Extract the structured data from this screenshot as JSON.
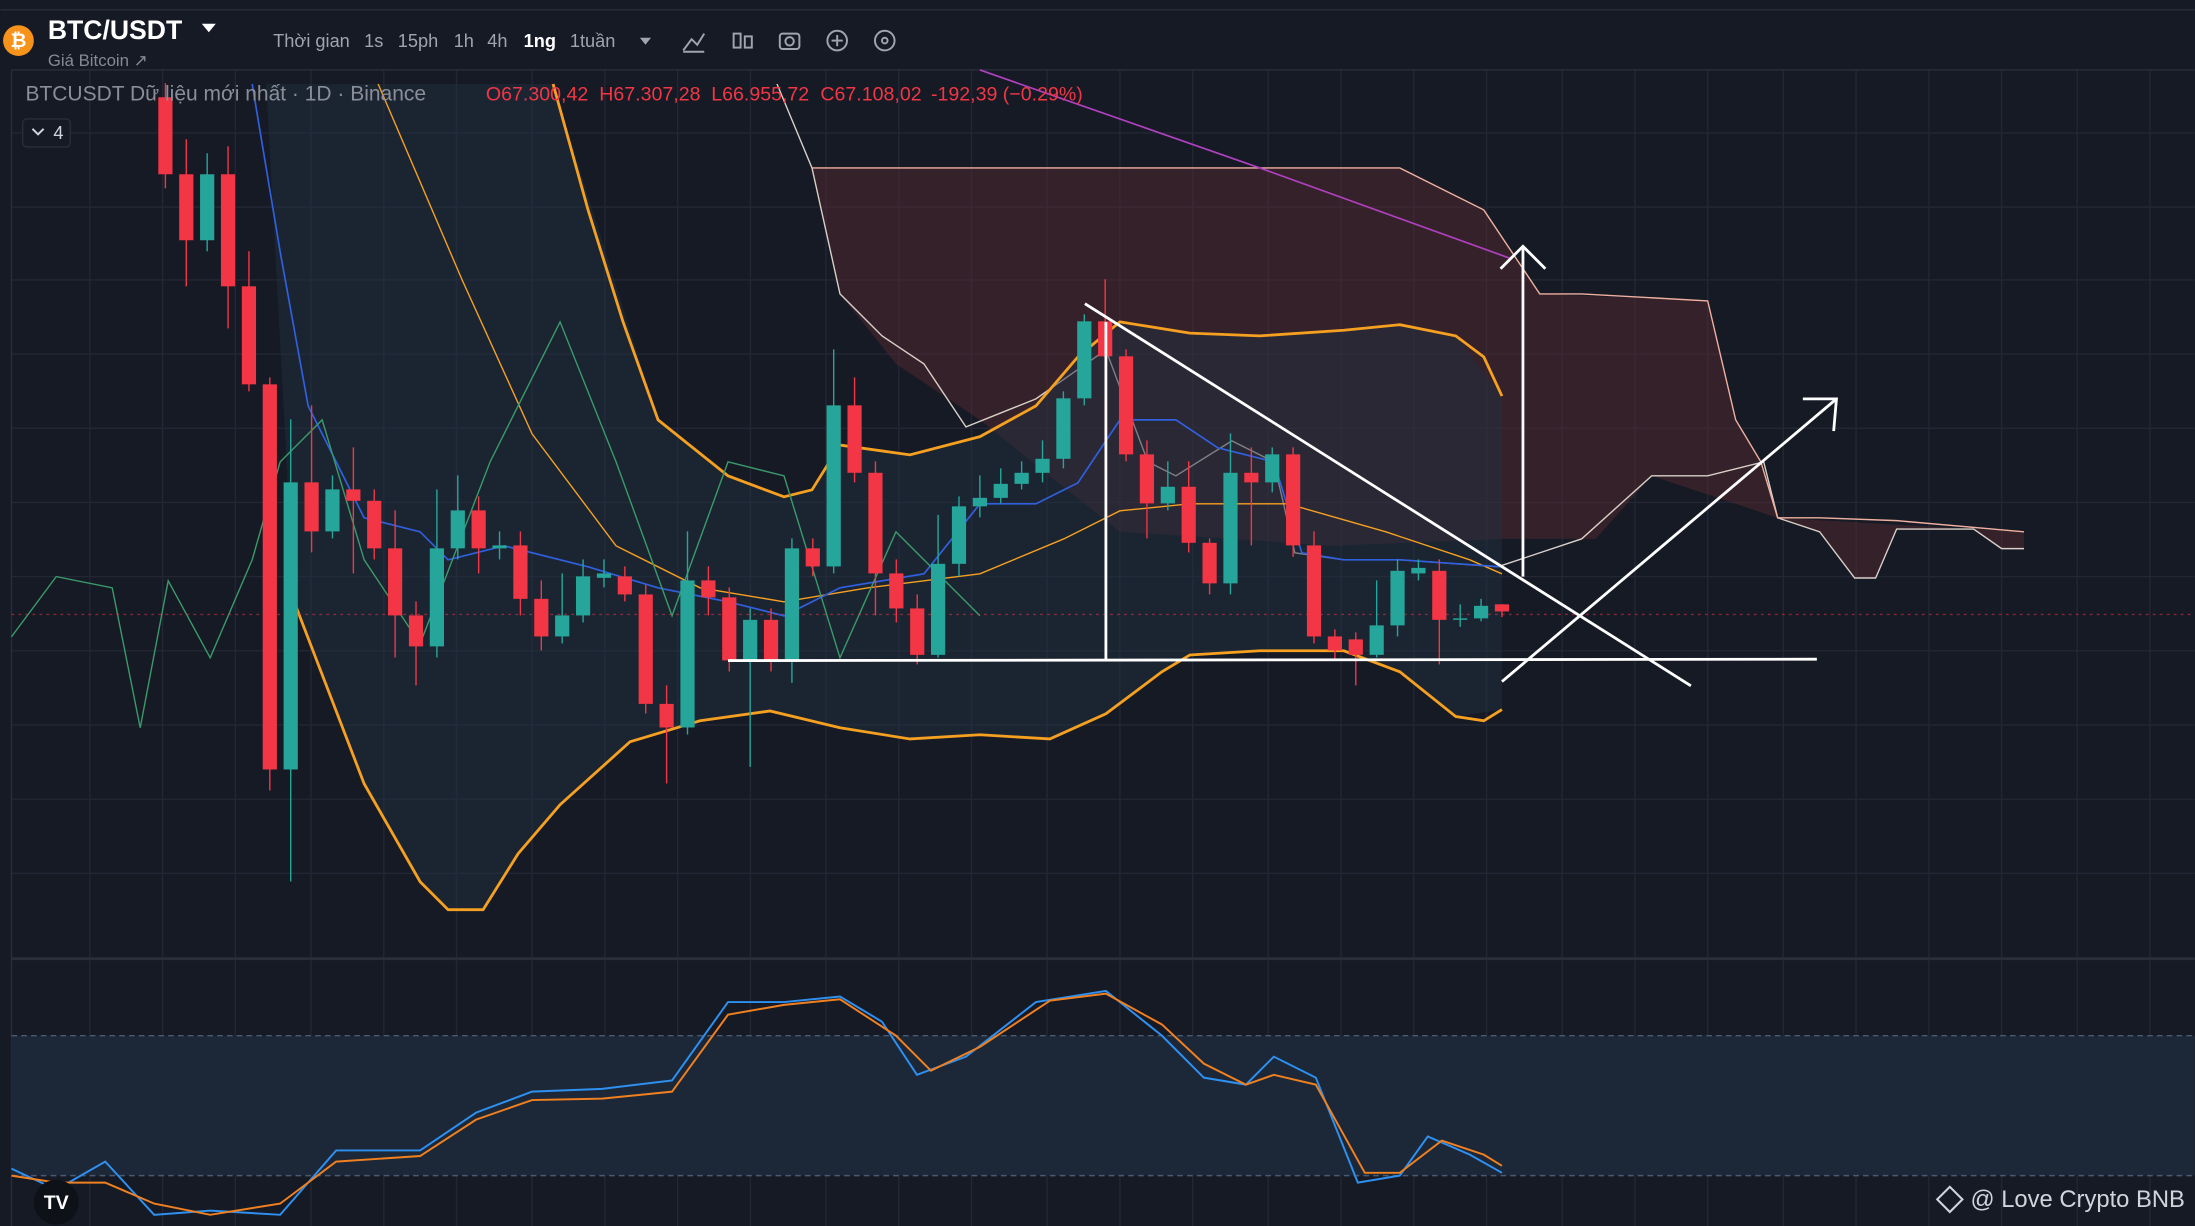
{
  "header": {
    "symbol": "BTC/USDT",
    "subtitle": "Giá Bitcoin ↗"
  },
  "toolbar": [
    "Thời gian",
    "1s",
    "15ph",
    "1h",
    "4h",
    "1ng",
    "1tuần"
  ],
  "legend": {
    "label": "BTCUSDT Dữ liệu mới nhất · 1D · Binance",
    "open": "O67.300,42",
    "high": "H67.307,28",
    "low": "L66.955,72",
    "close": "C67.108,02",
    "change": "-192,39 (−0.29%)",
    "indicators_count": "4"
  },
  "chart_data": {
    "type": "candlestick",
    "ylim": [
      57800,
      81800
    ],
    "up_color": "#26a69a",
    "down_color": "#f23645",
    "candles": [
      [
        81060,
        81440,
        78590,
        78970
      ],
      [
        78970,
        79920,
        75930,
        77180
      ],
      [
        77180,
        79540,
        76880,
        78970
      ],
      [
        78970,
        79730,
        74790,
        75930
      ],
      [
        75930,
        76880,
        73080,
        73270
      ],
      [
        73270,
        73460,
        62250,
        62820
      ],
      [
        62820,
        72320,
        59780,
        70610
      ],
      [
        70610,
        72700,
        68710,
        69280
      ],
      [
        69280,
        70800,
        69090,
        70420
      ],
      [
        70420,
        71560,
        68140,
        70110
      ],
      [
        70110,
        70420,
        68520,
        68820
      ],
      [
        68820,
        69850,
        65860,
        67000
      ],
      [
        67000,
        67380,
        65100,
        66160
      ],
      [
        66160,
        70420,
        65860,
        68820
      ],
      [
        68820,
        70800,
        68520,
        69850
      ],
      [
        69850,
        70230,
        68140,
        68820
      ],
      [
        68820,
        69280,
        68520,
        68900
      ],
      [
        68900,
        69280,
        67000,
        67450
      ],
      [
        67450,
        67950,
        66050,
        66430
      ],
      [
        66430,
        68140,
        66240,
        67000
      ],
      [
        67000,
        68520,
        66810,
        68060
      ],
      [
        68020,
        68520,
        67760,
        68140
      ],
      [
        68060,
        68330,
        67380,
        67570
      ],
      [
        67570,
        67830,
        64340,
        64600
      ],
      [
        64600,
        65100,
        62440,
        63960
      ],
      [
        63960,
        69280,
        63770,
        67950
      ],
      [
        67950,
        68330,
        67000,
        67490
      ],
      [
        67490,
        67760,
        65480,
        65780
      ],
      [
        65780,
        67190,
        62890,
        66880
      ],
      [
        66880,
        67190,
        65480,
        65740
      ],
      [
        65740,
        69090,
        65170,
        68820
      ],
      [
        68820,
        69090,
        68060,
        68330
      ],
      [
        68330,
        74220,
        68140,
        72700
      ],
      [
        72700,
        73460,
        70610,
        70870
      ],
      [
        70870,
        71180,
        67000,
        68140
      ],
      [
        68140,
        68520,
        66810,
        67190
      ],
      [
        67190,
        67570,
        65670,
        65930
      ],
      [
        65930,
        69730,
        65860,
        68400
      ],
      [
        68400,
        70230,
        68060,
        69960
      ],
      [
        69960,
        70800,
        69660,
        70190
      ],
      [
        70190,
        70990,
        70040,
        70570
      ],
      [
        70570,
        71180,
        70420,
        70870
      ],
      [
        70870,
        71750,
        70610,
        71250
      ],
      [
        71250,
        73080,
        70990,
        72890
      ],
      [
        72890,
        75170,
        72700,
        74980
      ],
      [
        74980,
        76120,
        70800,
        74030
      ],
      [
        74030,
        74220,
        71180,
        71370
      ],
      [
        71370,
        71750,
        69090,
        70040
      ],
      [
        70040,
        71180,
        69850,
        70490
      ],
      [
        70490,
        71180,
        68710,
        68970
      ],
      [
        68970,
        69090,
        67570,
        67870
      ],
      [
        67870,
        71940,
        67570,
        70870
      ],
      [
        70870,
        71560,
        68900,
        70610
      ],
      [
        70610,
        71560,
        70340,
        71370
      ],
      [
        71370,
        71560,
        68590,
        68900
      ],
      [
        68900,
        69280,
        66240,
        66430
      ],
      [
        66430,
        66620,
        65780,
        66050
      ],
      [
        66350,
        66540,
        65100,
        65930
      ],
      [
        65930,
        67950,
        65860,
        66730
      ],
      [
        66730,
        68520,
        66430,
        68210
      ],
      [
        68140,
        68520,
        67950,
        68290
      ],
      [
        68210,
        68520,
        65670,
        66880
      ],
      [
        66880,
        67300,
        66690,
        66920
      ],
      [
        66920,
        67450,
        66840,
        67260
      ],
      [
        67300.42,
        67307.28,
        66955.72,
        67108.02
      ]
    ]
  },
  "watermark": "@ Love Crypto BNB"
}
